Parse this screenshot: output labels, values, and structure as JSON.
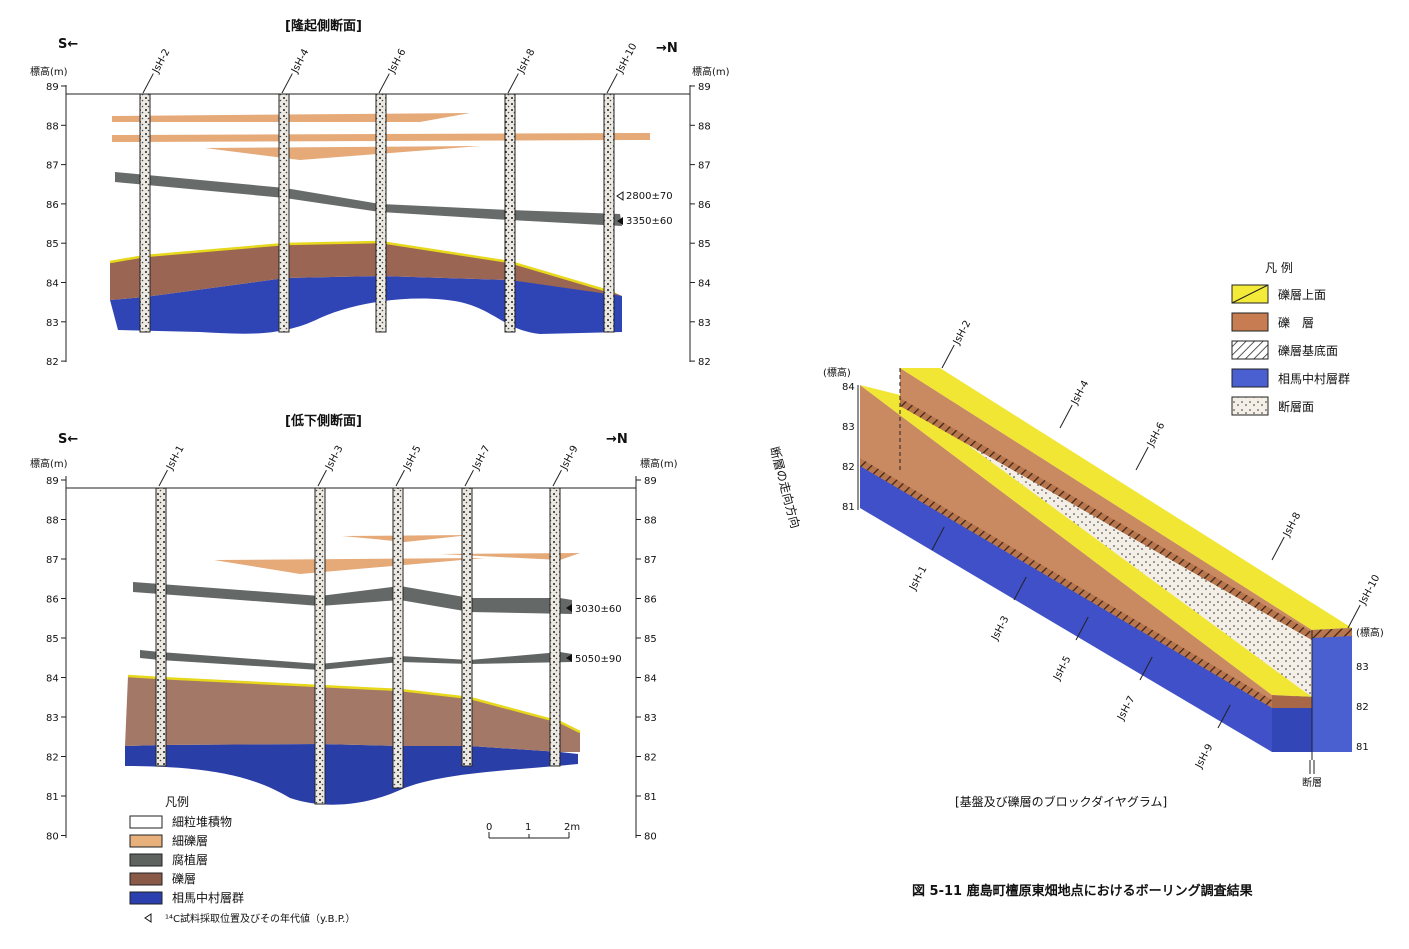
{
  "upper": {
    "title": "[隆起側断面]",
    "south": "S←",
    "north": "→N",
    "elev_label_left": "標高(m)",
    "elev_label_right": "標高(m)",
    "ticks": [
      "89",
      "88",
      "87",
      "86",
      "85",
      "84",
      "83",
      "82"
    ],
    "boreholes": [
      "JsH-2",
      "JsH-4",
      "JsH-6",
      "JsH-8",
      "JsH-10"
    ],
    "dates": [
      "2800±70",
      "3350±60"
    ]
  },
  "lower": {
    "title": "[低下側断面]",
    "south": "S←",
    "north": "→N",
    "elev_label_left": "標高(m)",
    "elev_label_right": "標高(m)",
    "ticks": [
      "89",
      "88",
      "87",
      "86",
      "85",
      "84",
      "83",
      "82",
      "81",
      "80"
    ],
    "boreholes": [
      "JsH-1",
      "JsH-3",
      "JsH-5",
      "JsH-7",
      "JsH-9"
    ],
    "dates": [
      "3030±60",
      "5050±90"
    ]
  },
  "scale": {
    "zero": "0",
    "one": "1",
    "two": "2m"
  },
  "legend_left": {
    "title": "凡例",
    "items": [
      "細粒堆積物",
      "細礫層",
      "腐植層",
      "礫層",
      "相馬中村層群"
    ],
    "note": "¹⁴C試料採取位置及びその年代値（y.B.P.）",
    "colors": [
      "#ffffff",
      "#e8b07a",
      "#5f6360",
      "#8a5a48",
      "#2b3fae"
    ]
  },
  "legend_right": {
    "title": "凡 例",
    "items": [
      "礫層上面",
      "礫　層",
      "礫層基底面",
      "相馬中村層群",
      "断層面"
    ],
    "colors": [
      "#f4ea3a",
      "#c77c52",
      "#ffffff",
      "#4a5fd0",
      "#f3efe8"
    ]
  },
  "block": {
    "left_scale_title": "(標高)",
    "left_ticks": [
      "84",
      "83",
      "82",
      "81"
    ],
    "right_scale_title": "(標高)",
    "right_ticks": [
      "83",
      "82",
      "81"
    ],
    "strike_label": "断層の走向方向",
    "fault_label": "断層",
    "boreholes_back": [
      "JsH-2",
      "JsH-4",
      "JsH-6",
      "JsH-8",
      "JsH-10"
    ],
    "boreholes_front": [
      "JsH-1",
      "JsH-3",
      "JsH-5",
      "JsH-7",
      "JsH-9"
    ],
    "caption": "[基盤及び礫層のブロックダイヤグラム]"
  },
  "figure_caption": "図 5-11 鹿島町檀原東畑地点におけるボーリング調査結果"
}
